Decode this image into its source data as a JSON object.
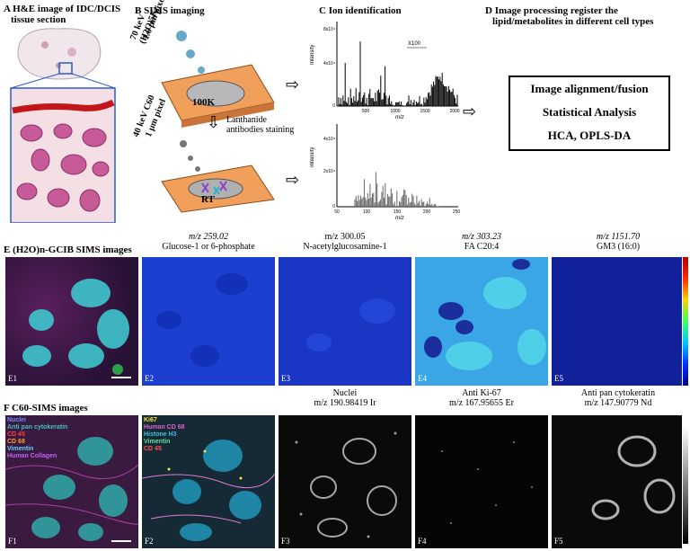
{
  "panels": {
    "A": {
      "title": "A H&E image of IDC/DCIS",
      "subtitle": "tissue section"
    },
    "B": {
      "title": "B SIMS imaging",
      "beam1_line1": "70 keV (H2O)5K",
      "beam1_line2": "1.6 µm pixel",
      "temp1": "100K",
      "step": "Lanthanide",
      "step2": "antibodies staining",
      "beam2_line1": "40 keV C60",
      "beam2_line2": "1 µm pixel",
      "temp2": "RT"
    },
    "C": {
      "title": "C Ion identification",
      "zoom_label": "X100",
      "ylabel": "Intensity",
      "xlabel": "m/z",
      "top_yticks": [
        "8x10⁴",
        "4x10⁴",
        "0"
      ],
      "top_xticks": [
        "500",
        "1000",
        "1500",
        "2000"
      ],
      "bot_yticks": [
        "4x10⁴",
        "2x10⁴",
        "0"
      ],
      "bot_xticks": [
        "50",
        "100",
        "150",
        "200",
        "250"
      ]
    },
    "D": {
      "title_line1": "D Image processing register the",
      "title_line2": "lipid/metabolites in different cell types",
      "box_line1": "Image alignment/fusion",
      "box_line2": "Statistical Analysis",
      "box_line3": "HCA, OPLS-DA"
    },
    "E": {
      "title": "E (H2O)n-GCIB SIMS images",
      "images": [
        {
          "id": "E1",
          "line1": "",
          "line2": ""
        },
        {
          "id": "E2",
          "line1": "m/z 259.02",
          "line2": "Glucose-1 or 6-phosphate"
        },
        {
          "id": "E3",
          "line1": "m/z 300.05",
          "line2": "N-acetylglucosamine-1"
        },
        {
          "id": "E4",
          "line1": "m/z 303.23",
          "line2": "FA C20:4"
        },
        {
          "id": "E5",
          "line1": "m/z 1151.70",
          "line2": "GM3 (16:0)"
        }
      ]
    },
    "F": {
      "title": "F C60-SIMS images",
      "f1_legend": [
        "Nuclei",
        "Anti pan cytokeratin",
        "CD 45",
        "CD 68",
        "Vimentin",
        "Human Collagen"
      ],
      "f2_legend": [
        "Ki67",
        "Human CD 68",
        "Histone H3",
        "Vimentin",
        "CD 45"
      ],
      "images": [
        {
          "id": "F1",
          "line1": "",
          "line2": ""
        },
        {
          "id": "F2",
          "line1": "",
          "line2": ""
        },
        {
          "id": "F3",
          "line1": "Nuclei",
          "line2": "m/z 190.98419 Ir"
        },
        {
          "id": "F4",
          "line1": "Anti Ki-67",
          "line2": "m/z 167.95655 Er"
        },
        {
          "id": "F5",
          "line1": "Anti pan cytokeratin",
          "line2": "m/z 147.90779 Nd"
        }
      ]
    }
  },
  "colors": {
    "e_blue": "#1a3fd6",
    "e_cyan": "#3fd0e0",
    "panel_orange": "#e88a3c"
  }
}
